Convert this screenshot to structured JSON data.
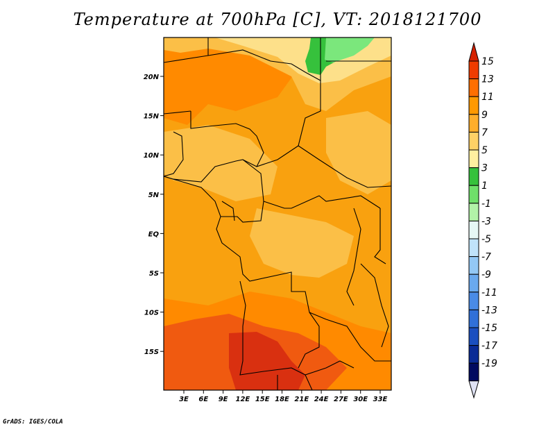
{
  "title": "Temperature at 700hPa [C], VT: 2018121700",
  "credit": "GrADS: IGES/COLA",
  "map": {
    "lon_labels": [
      "3E",
      "6E",
      "9E",
      "12E",
      "15E",
      "18E",
      "21E",
      "24E",
      "27E",
      "30E",
      "33E"
    ],
    "lat_labels": [
      "20N",
      "15N",
      "10N",
      "5N",
      "EQ",
      "5S",
      "10S",
      "15S"
    ]
  },
  "colorbar": {
    "labels": [
      "15",
      "13",
      "11",
      "9",
      "7",
      "5",
      "3",
      "1",
      "-1",
      "-3",
      "-5",
      "-7",
      "-9",
      "-11",
      "-13",
      "-15",
      "-17",
      "-19"
    ],
    "colors": [
      "#d62200",
      "#f03c00",
      "#ff6f00",
      "#ff9900",
      "#ffae2a",
      "#ffd166",
      "#fff0a0",
      "#36c13c",
      "#6fe06a",
      "#b2f3a8",
      "#e6f7f5",
      "#c0e3fa",
      "#93c8f5",
      "#6aa9ee",
      "#4a8be6",
      "#3070d8",
      "#1b4fc0",
      "#0a2b96",
      "#000a60",
      "#e0e3f5"
    ]
  },
  "colors": {
    "field_base": "#f9a10f",
    "field_warm": "#ff8a00",
    "field_hot": "#f05a10",
    "field_hottest": "#d93010",
    "field_cool": "#fbbf47",
    "field_cooler": "#fde08a",
    "field_green": "#36c13c",
    "field_lightgreen": "#7be77c"
  }
}
